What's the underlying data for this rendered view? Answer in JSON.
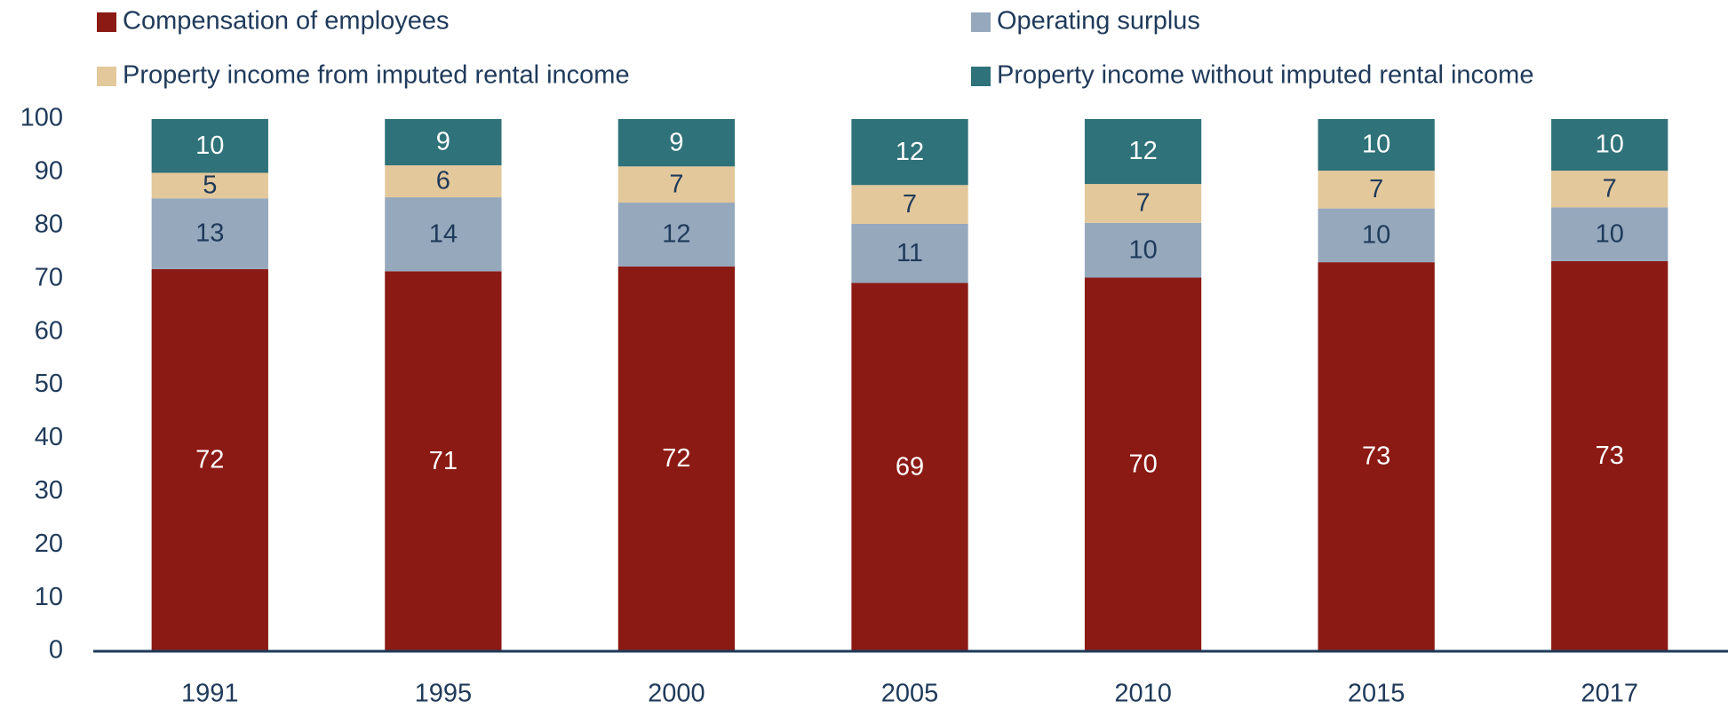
{
  "chart_data": {
    "type": "stacked_bar",
    "categories": [
      "1991",
      "1995",
      "2000",
      "2005",
      "2010",
      "2015",
      "2017"
    ],
    "series": [
      {
        "name": "Compensation of employees",
        "color": "#8b1a14",
        "values": [
          71.8,
          71.4,
          72.3,
          69.2,
          70.2,
          73.1,
          73.3
        ],
        "value_labels": [
          "72",
          "71",
          "72",
          "69",
          "70",
          "73",
          "73"
        ]
      },
      {
        "name": "Operating surplus",
        "color": "#95a8bc",
        "values": [
          13.3,
          13.9,
          12.0,
          11.1,
          10.3,
          10.1,
          10.1
        ],
        "value_labels": [
          "13",
          "14",
          "12",
          "11",
          "10",
          "10",
          "10"
        ]
      },
      {
        "name": "Property income from imputed rental income",
        "color": "#e3c89b",
        "values": [
          4.8,
          6.0,
          6.8,
          7.3,
          7.3,
          7.1,
          6.9
        ],
        "value_labels": [
          "5",
          "6",
          "7",
          "7",
          "7",
          "7",
          "7"
        ]
      },
      {
        "name": "Property income without imputed rental income",
        "color": "#2f727a",
        "values": [
          10.1,
          8.7,
          8.9,
          12.4,
          12.2,
          9.7,
          9.7
        ],
        "value_labels": [
          "10",
          "9",
          "9",
          "12",
          "12",
          "10",
          "10"
        ]
      }
    ],
    "ylim": [
      0,
      100
    ],
    "yticks": [
      0,
      10,
      20,
      30,
      40,
      50,
      60,
      70,
      80,
      90,
      100
    ],
    "grid": false,
    "legend": "top"
  }
}
